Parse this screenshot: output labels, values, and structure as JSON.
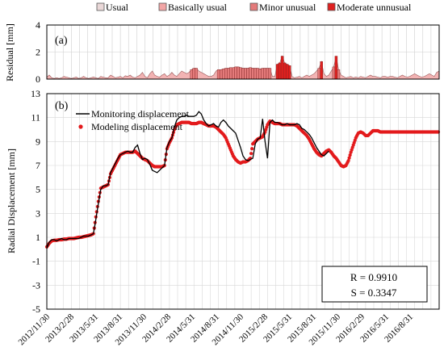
{
  "chart_data": [
    {
      "type": "area",
      "panel_label": "(a)",
      "ylabel": "Residual [mm]",
      "ylim": [
        0,
        4
      ],
      "yticks": [
        0,
        2,
        4
      ],
      "grid": true,
      "legend": {
        "placement": "top",
        "entries": [
          {
            "label": "Usual",
            "color": "#ead8d8"
          },
          {
            "label": "Basically usual",
            "color": "#f2a5a5"
          },
          {
            "label": "Minor unusual",
            "color": "#e47a7a"
          },
          {
            "label": "Moderate unnusual",
            "color": "#e0201f"
          }
        ]
      },
      "x_index": [
        0,
        1,
        2,
        3,
        4,
        5,
        6,
        7,
        8,
        9,
        10,
        11,
        12,
        13,
        14,
        15,
        16,
        17,
        18,
        19,
        20,
        21,
        22,
        23,
        24,
        25,
        26,
        27,
        28,
        29,
        30,
        31,
        32,
        33,
        34,
        35,
        36,
        37,
        38,
        39,
        40,
        41,
        42,
        43,
        44,
        45,
        46,
        47,
        48,
        49,
        50,
        51,
        52,
        53,
        54,
        55,
        56,
        57,
        58,
        59,
        60,
        61,
        62,
        63,
        64,
        65,
        66,
        67,
        68,
        69,
        70,
        71,
        72,
        73,
        74,
        75,
        76,
        77,
        78,
        79,
        80,
        81,
        82,
        83,
        84,
        85,
        86,
        87,
        88,
        89,
        90,
        91,
        92,
        93,
        94,
        95,
        96,
        97,
        98,
        99,
        100,
        101,
        102,
        103,
        104,
        105,
        106,
        107,
        108,
        109,
        110,
        111,
        112,
        113,
        114,
        115,
        116,
        117,
        118,
        119,
        120,
        121,
        122,
        123,
        124,
        125,
        126,
        127,
        128,
        129,
        130,
        131,
        132,
        133,
        134,
        135,
        136,
        137,
        138,
        139,
        140,
        141,
        142,
        143,
        144,
        145,
        146,
        147,
        148,
        149,
        150,
        151,
        152,
        153,
        154,
        155,
        156,
        157,
        158,
        159,
        160
      ],
      "values": [
        0.15,
        0.3,
        0.1,
        0.05,
        0.1,
        0.05,
        0.1,
        0.2,
        0.15,
        0.1,
        0.05,
        0.1,
        0.15,
        0.05,
        0.1,
        0.2,
        0.1,
        0.05,
        0.1,
        0.15,
        0.1,
        0.05,
        0.2,
        0.15,
        0.1,
        0.1,
        0.3,
        0.2,
        0.1,
        0.15,
        0.2,
        0.1,
        0.25,
        0.2,
        0.3,
        0.15,
        0.1,
        0.2,
        0.3,
        0.5,
        0.2,
        0.1,
        0.4,
        0.6,
        0.3,
        0.2,
        0.15,
        0.3,
        0.4,
        0.2,
        0.3,
        0.5,
        0.3,
        0.2,
        0.4,
        0.6,
        0.5,
        0.4,
        0.5,
        0.7,
        0.8,
        0.8,
        0.6,
        0.5,
        0.4,
        0.3,
        0.2,
        0.2,
        0.3,
        0.6,
        0.7,
        0.7,
        0.75,
        0.8,
        0.8,
        0.85,
        0.85,
        0.9,
        0.9,
        0.85,
        0.8,
        0.8,
        0.8,
        0.85,
        0.8,
        0.8,
        0.8,
        0.75,
        0.8,
        0.8,
        0.8,
        0.8,
        0.2,
        0.2,
        1.1,
        1.2,
        1.7,
        1.2,
        1.1,
        1.0,
        0.2,
        0.1,
        0.15,
        0.2,
        0.1,
        0.2,
        0.3,
        0.2,
        0.3,
        0.4,
        0.6,
        0.8,
        1.3,
        0.4,
        0.2,
        0.3,
        0.6,
        0.9,
        1.7,
        0.7,
        0.3,
        0.2,
        0.1,
        0.15,
        0.2,
        0.1,
        0.15,
        0.1,
        0.2,
        0.15,
        0.1,
        0.2,
        0.3,
        0.2,
        0.2,
        0.15,
        0.1,
        0.2,
        0.2,
        0.15,
        0.2,
        0.2,
        0.15,
        0.1,
        0.2,
        0.3,
        0.2,
        0.15,
        0.2,
        0.3,
        0.4,
        0.3,
        0.2,
        0.15,
        0.2,
        0.3,
        0.4,
        0.3,
        0.2,
        0.5,
        0.6
      ]
    },
    {
      "type": "line",
      "panel_label": "(b)",
      "ylabel": "Radial Displacement [mm]",
      "ylim": [
        -5,
        13
      ],
      "yticks": [
        -5,
        -3,
        -1,
        1,
        3,
        5,
        7,
        9,
        11,
        13
      ],
      "grid": true,
      "legend": {
        "placement": "top-left"
      },
      "x_tick_labels": [
        "2012/11/30",
        "2013/2/28",
        "2013/5/31",
        "2013/8/31",
        "2013/11/30",
        "2014/2/28",
        "2014/5/31",
        "2014/8/31",
        "2014/11/30",
        "2015/2/28",
        "2015/5/31",
        "2015/8/31",
        "2015/11/30",
        "2016/2/29",
        "2016/5/31",
        "2016/8/31"
      ],
      "x_index": [
        0,
        1,
        2,
        3,
        4,
        5,
        6,
        7,
        8,
        9,
        10,
        11,
        12,
        13,
        14,
        15,
        16,
        17,
        18,
        19,
        20,
        21,
        22,
        23,
        24,
        25,
        26,
        27,
        28,
        29,
        30,
        31,
        32,
        33,
        34,
        35,
        36,
        37,
        38,
        39,
        40,
        41,
        42,
        43,
        44,
        45,
        46,
        47,
        48,
        49,
        50,
        51,
        52,
        53,
        54,
        55,
        56,
        57,
        58,
        59,
        60,
        61,
        62,
        63,
        64,
        65,
        66,
        67,
        68,
        69,
        70,
        71,
        72,
        73,
        74,
        75,
        76,
        77,
        78,
        79,
        80,
        81,
        82,
        83,
        84,
        85,
        86,
        87,
        88,
        89,
        90,
        91,
        92,
        93,
        94,
        95,
        96,
        97,
        98,
        99,
        100,
        101,
        102,
        103,
        104,
        105,
        106,
        107,
        108,
        109,
        110,
        111,
        112,
        113,
        114,
        115,
        116,
        117,
        118,
        119,
        120,
        121,
        122,
        123,
        124,
        125,
        126,
        127,
        128,
        129,
        130,
        131,
        132,
        133,
        134,
        135,
        136,
        137,
        138,
        139,
        140,
        141,
        142,
        143,
        144,
        145,
        146,
        147,
        148,
        149,
        150,
        151,
        152,
        153,
        154,
        155,
        156,
        157,
        158,
        159,
        160
      ],
      "series": [
        {
          "name": "Monitoring displacement",
          "style": "line",
          "color": "#000000",
          "values": [
            0.1,
            0.6,
            0.8,
            0.8,
            0.7,
            0.8,
            0.9,
            0.8,
            0.8,
            0.9,
            0.9,
            0.9,
            0.9,
            0.9,
            1.0,
            1.1,
            1.1,
            1.1,
            1.2,
            1.3,
            2.5,
            3.8,
            5.0,
            5.3,
            5.3,
            5.4,
            6.4,
            6.8,
            7.2,
            7.6,
            7.9,
            8.0,
            8.1,
            8.2,
            8.1,
            8.1,
            8.5,
            8.7,
            8.0,
            7.5,
            7.6,
            7.5,
            7.1,
            6.6,
            6.5,
            6.4,
            6.6,
            6.8,
            7.0,
            8.5,
            9.0,
            9.3,
            10.2,
            10.8,
            11.0,
            11.1,
            11.1,
            11.2,
            11.1,
            11.1,
            11.1,
            11.2,
            11.5,
            11.3,
            10.8,
            10.5,
            10.3,
            10.4,
            10.5,
            10.3,
            10.2,
            10.6,
            10.8,
            10.6,
            10.3,
            10.1,
            9.9,
            9.7,
            9.1,
            8.5,
            7.8,
            7.5,
            7.4,
            7.5,
            7.6,
            8.8,
            9.2,
            9.3,
            10.9,
            9.0,
            7.6,
            10.6,
            10.8,
            10.6,
            10.6,
            10.5,
            10.4,
            10.4,
            10.5,
            10.4,
            10.4,
            10.4,
            10.5,
            10.4,
            10.1,
            10.0,
            9.8,
            9.6,
            9.3,
            8.9,
            8.5,
            8.2,
            7.9,
            7.8,
            8.0,
            8.2,
            8.4,
            8.2,
            7.9,
            7.7,
            7.5,
            7.2,
            7.0,
            7.0,
            7.5,
            8.2,
            8.8,
            9.4,
            9.8,
            9.9,
            9.7,
            9.4,
            9.6,
            9.9,
            10.1,
            10.2,
            10.3,
            10.3,
            10.3,
            10.4,
            10.4,
            10.4,
            10.3,
            10.3,
            10.3,
            10.3,
            10.3,
            10.3,
            10.3,
            10.3,
            10.3,
            10.3,
            10.3,
            10.3,
            10.3,
            10.3,
            10.3,
            10.3,
            10.3,
            10.3,
            10.3
          ],
          "note_points_shown": 116
        },
        {
          "name": "Modeling displacement",
          "style": "scatter",
          "color": "#e31a1c",
          "values": [
            0.2,
            0.5,
            0.7,
            0.75,
            0.75,
            0.8,
            0.8,
            0.85,
            0.85,
            0.9,
            0.9,
            0.9,
            0.95,
            1.0,
            1.0,
            1.05,
            1.1,
            1.15,
            1.2,
            1.3,
            2.7,
            4.0,
            5.1,
            5.2,
            5.3,
            5.4,
            6.3,
            6.7,
            7.1,
            7.5,
            7.9,
            8.0,
            8.1,
            8.1,
            8.1,
            8.1,
            8.2,
            8.0,
            7.8,
            7.6,
            7.5,
            7.4,
            7.2,
            7.0,
            6.9,
            6.9,
            6.9,
            6.9,
            7.0,
            8.4,
            8.9,
            9.3,
            10.0,
            10.4,
            10.5,
            10.6,
            10.6,
            10.6,
            10.6,
            10.5,
            10.5,
            10.5,
            10.6,
            10.6,
            10.5,
            10.4,
            10.3,
            10.3,
            10.3,
            10.2,
            10.0,
            9.8,
            9.6,
            9.3,
            8.8,
            8.3,
            7.8,
            7.5,
            7.3,
            7.2,
            7.3,
            7.3,
            7.4,
            7.6,
            8.8,
            9.0,
            9.2,
            9.3,
            9.4,
            9.8,
            10.4,
            10.7,
            10.6,
            10.5,
            10.5,
            10.5,
            10.4,
            10.4,
            10.4,
            10.4,
            10.4,
            10.4,
            10.3,
            10.1,
            9.9,
            9.7,
            9.5,
            9.2,
            8.8,
            8.4,
            8.1,
            7.9,
            7.8,
            8.0,
            8.2,
            8.3,
            8.1,
            7.8,
            7.6,
            7.3,
            7.0,
            6.9,
            7.0,
            7.4,
            8.1,
            8.7,
            9.3,
            9.7,
            9.8,
            9.7,
            9.5,
            9.5,
            9.7,
            9.9,
            9.9,
            9.9,
            9.8,
            9.8,
            9.8,
            9.8,
            9.8,
            9.8,
            9.8,
            9.8,
            9.8,
            9.8,
            9.8,
            9.8,
            9.8,
            9.8,
            9.8,
            9.8,
            9.8,
            9.8,
            9.8,
            9.8,
            9.8,
            9.8,
            9.8,
            9.8,
            9.8
          ]
        }
      ],
      "stats": {
        "R": "R = 0.9910",
        "S": "S = 0.3347"
      }
    }
  ]
}
